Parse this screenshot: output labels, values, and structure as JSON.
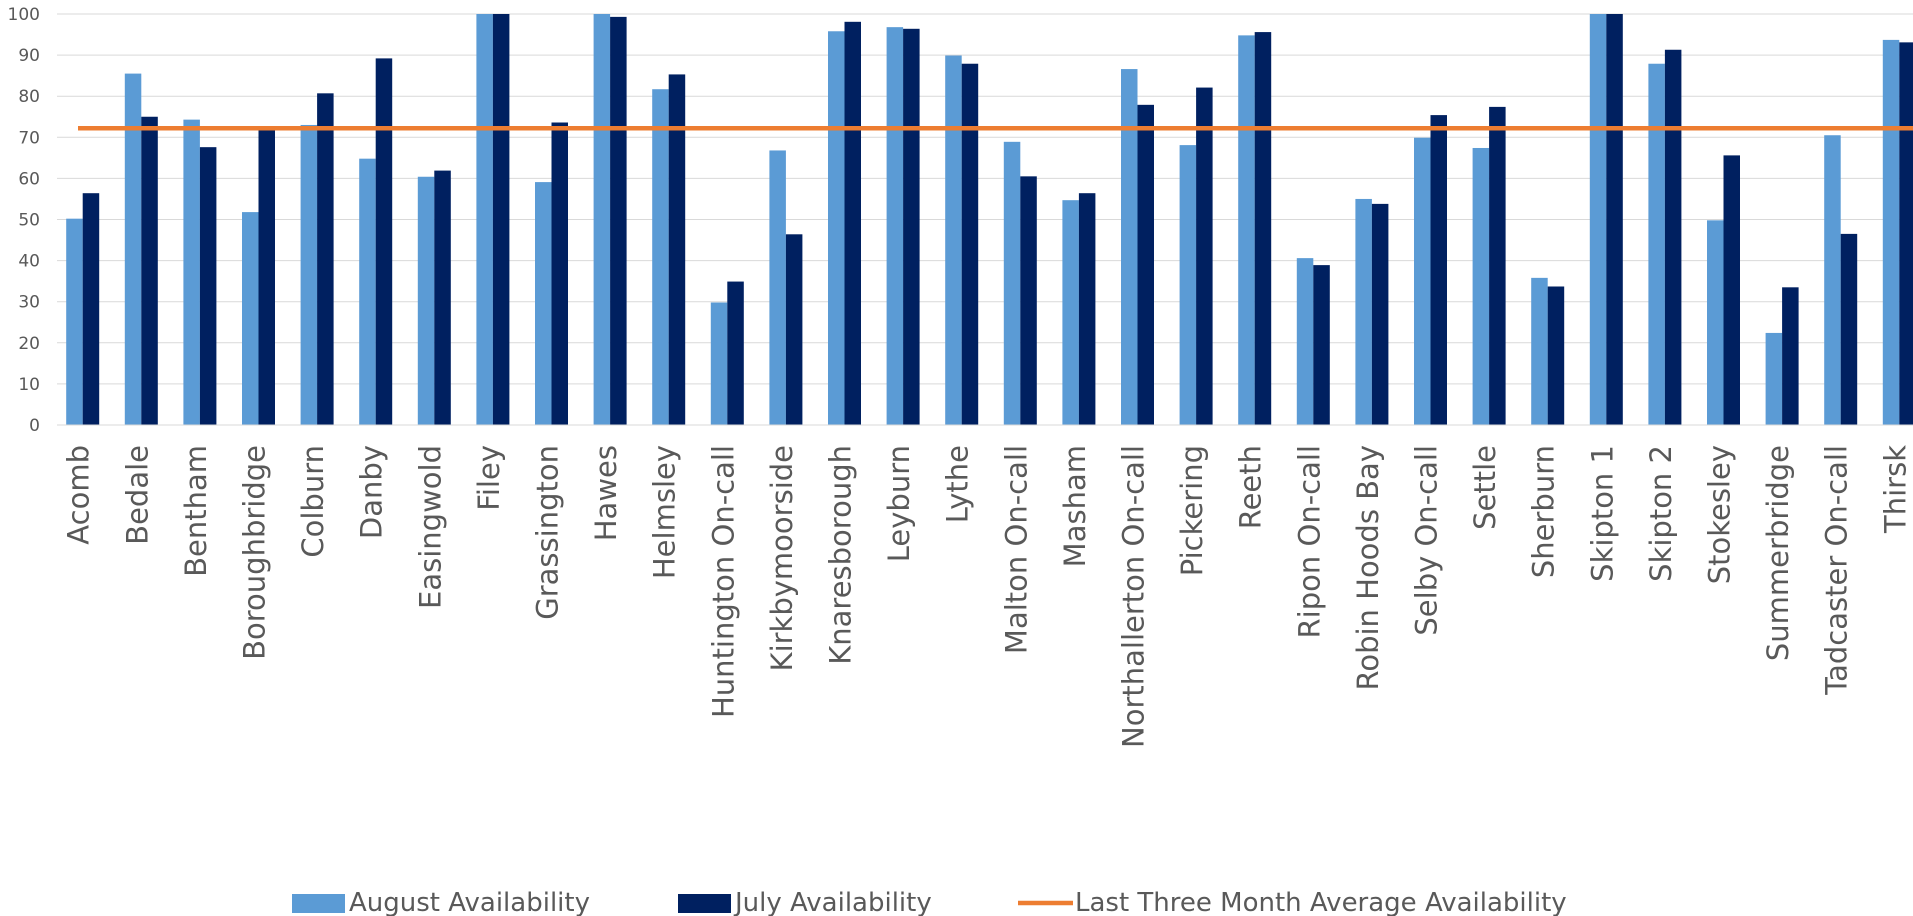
{
  "chart_data": {
    "type": "bar",
    "title": "",
    "xlabel": "",
    "ylabel": "",
    "ylim": [
      0,
      100
    ],
    "yticks": [
      0,
      10,
      20,
      30,
      40,
      50,
      60,
      70,
      80,
      90,
      100
    ],
    "grid": true,
    "legend_position": "bottom",
    "categories": [
      "Acomb",
      "Bedale",
      "Bentham",
      "Boroughbridge",
      "Colburn",
      "Danby",
      "Easingwold",
      "Filey",
      "Grassington",
      "Hawes",
      "Helmsley",
      "Huntington On-call",
      "Kirkbymoorside",
      "Knaresborough",
      "Leyburn",
      "Lythe",
      "Malton On-call",
      "Masham",
      "Northallerton On-call",
      "Pickering",
      "Reeth",
      "Ripon On-call",
      "Robin Hoods Bay",
      "Selby On-call",
      "Settle",
      "Sherburn",
      "Skipton 1",
      "Skipton 2",
      "Stokesley",
      "Summerbridge",
      "Tadcaster On-call",
      "Thirsk"
    ],
    "series": [
      {
        "name": "August Availability",
        "type": "bar",
        "color": "#5b9bd5",
        "values": [
          50.2,
          85.5,
          74.3,
          51.8,
          73.0,
          64.8,
          60.4,
          100,
          59.1,
          100,
          81.7,
          29.8,
          66.8,
          95.8,
          96.8,
          89.9,
          68.9,
          54.7,
          86.6,
          68.1,
          94.8,
          40.6,
          55.0,
          69.9,
          67.4,
          35.8,
          100,
          87.9,
          49.8,
          22.4,
          70.5,
          93.7
        ]
      },
      {
        "name": "July Availability",
        "type": "bar",
        "color": "#002060",
        "values": [
          56.4,
          75.0,
          67.6,
          72.0,
          80.7,
          89.2,
          61.9,
          100,
          73.6,
          99.3,
          85.3,
          34.9,
          46.4,
          98.1,
          96.4,
          87.9,
          60.5,
          56.4,
          77.9,
          82.1,
          95.6,
          38.9,
          53.8,
          75.4,
          77.4,
          33.7,
          100,
          91.3,
          65.6,
          33.5,
          46.5,
          93.1
        ]
      },
      {
        "name": "Last Three Month Average Availability",
        "type": "line",
        "color": "#ed7d31",
        "value": 72.2
      }
    ]
  }
}
